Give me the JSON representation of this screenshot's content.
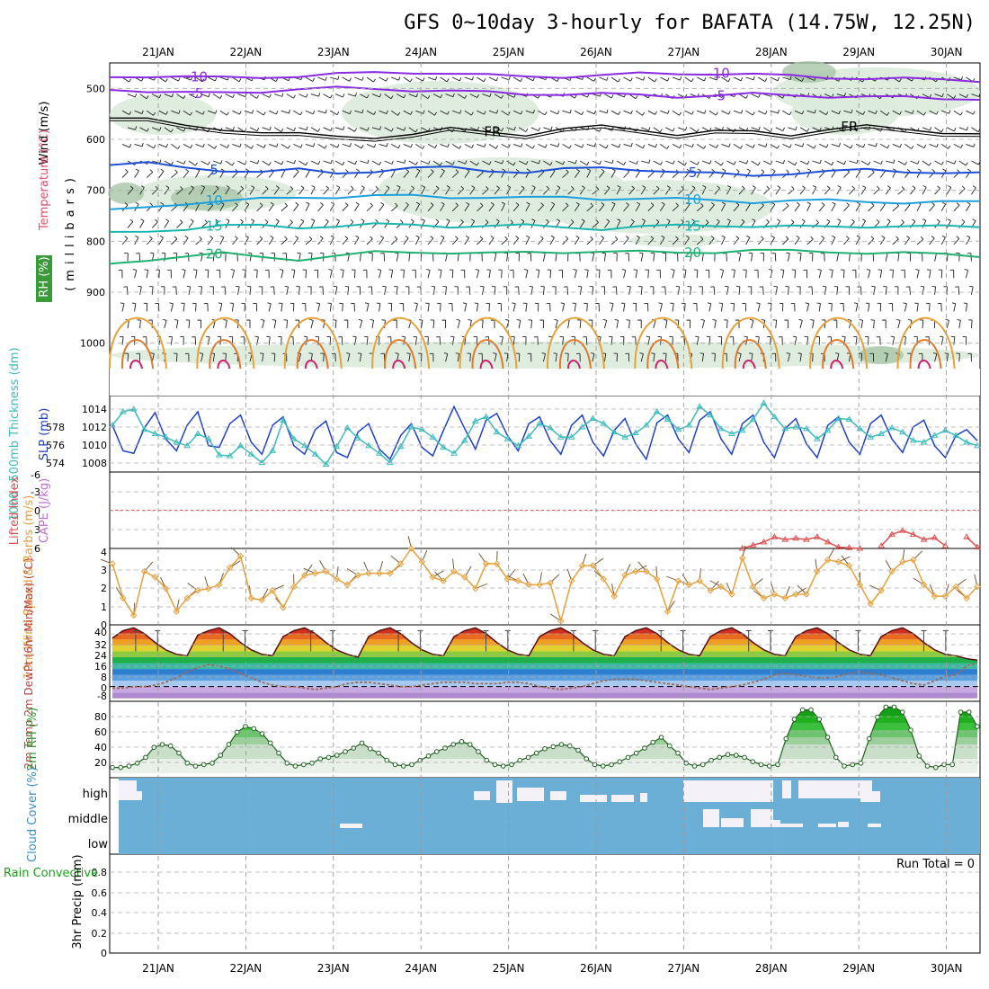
{
  "header": {
    "title": "GFS 0~10day 3-hourly for BAFATA (14.75W, 12.25N)"
  },
  "dates": [
    "21JAN",
    "22JAN",
    "23JAN",
    "24JAN",
    "25JAN",
    "26JAN",
    "27JAN",
    "28JAN",
    "29JAN",
    "30JAN"
  ],
  "colors": {
    "cloud_fill": "#6baed6",
    "rh_fill": "#2fbf2f",
    "temp_fill": "#d7301f",
    "slp_line": "#1f3fcf",
    "thickness_line": "#3cbcbc",
    "wind_line": "#e8a03c",
    "lifted_line": "#e05050",
    "contour_purple": "#8a2be2",
    "contour_blue": "#1f4fd6",
    "contour_lightblue": "#1ea0dc",
    "contour_teal": "#1bb5b0",
    "contour_green": "#20b070",
    "contour_orange": "#e8a23a",
    "rh_shade": "#dcebdc",
    "dewpoint_line": "#9a6a5a"
  },
  "chart_data": [
    {
      "id": "upper_air",
      "type": "heatmap",
      "ylabel": "(millibars)",
      "labels": {
        "wind": "Wind (m/s)",
        "temperature": "Temperature (°C)",
        "rh": "RH (%)"
      },
      "yticks": [
        "500",
        "600",
        "700",
        "800",
        "900",
        "1000"
      ],
      "ylim": [
        450,
        1050
      ],
      "contours": [
        {
          "label": "-10",
          "color": "purple",
          "p": [
            478,
            475,
            477,
            480,
            478,
            475,
            472,
            470,
            468,
            470,
            475,
            477,
            476,
            474,
            472,
            471,
            470,
            473,
            476,
            478,
            480,
            482,
            483,
            484
          ]
        },
        {
          "label": "-5",
          "color": "purple",
          "p": [
            500,
            506,
            510,
            508,
            505,
            502,
            500,
            500,
            503,
            506,
            508,
            510,
            511,
            512,
            513,
            515,
            514,
            512,
            513,
            515,
            517,
            518,
            519,
            520
          ]
        },
        {
          "label": "FR",
          "color": "black",
          "p": [
            555,
            560,
            575,
            580,
            585,
            590,
            595,
            595,
            590,
            580,
            585,
            590,
            580,
            575,
            580,
            590,
            585,
            585,
            590,
            580,
            575,
            580,
            585,
            590
          ]
        },
        {
          "label": "5",
          "color": "blue",
          "p": [
            650,
            648,
            655,
            660,
            665,
            660,
            665,
            662,
            658,
            655,
            660,
            665,
            660,
            655,
            658,
            665,
            668,
            670,
            666,
            664,
            660,
            662,
            665,
            668
          ]
        },
        {
          "label": "10",
          "color": "lightblue",
          "p": [
            740,
            735,
            725,
            720,
            718,
            715,
            712,
            710,
            712,
            714,
            712,
            715,
            715,
            716,
            715,
            718,
            720,
            722,
            720,
            721,
            722,
            723,
            723,
            724
          ]
        },
        {
          "label": "15",
          "color": "teal",
          "p": [
            785,
            780,
            775,
            770,
            770,
            772,
            770,
            768,
            768,
            770,
            770,
            770,
            772,
            775,
            772,
            770,
            768,
            770,
            772,
            772,
            770,
            770,
            772,
            772
          ]
        },
        {
          "label": "20",
          "color": "green",
          "p": [
            845,
            835,
            830,
            825,
            830,
            835,
            830,
            822,
            820,
            822,
            825,
            822,
            820,
            820,
            822,
            822,
            820,
            818,
            820,
            820,
            822,
            824,
            826,
            828
          ]
        }
      ]
    },
    {
      "id": "slp_thickness",
      "type": "line",
      "ylabel_left": "1000~500mb Thickness (dm)",
      "ylabel_right": "SLP (mb)",
      "yticks_left": [
        "574",
        "576",
        "578"
      ],
      "yticks_right": [
        "1008",
        "1010",
        "1012",
        "1014"
      ],
      "ylim": [
        1006.5,
        1015.5
      ],
      "series": [
        {
          "name": "SLP (mb)",
          "values": [
            1012,
            1009,
            1008.7,
            1011.7,
            1013.5,
            1010.4,
            1009,
            1012,
            1013.6,
            1009.6,
            1009.4,
            1012.2,
            1013.2,
            1010,
            1008.6,
            1012,
            1013,
            1009.6,
            1008.6,
            1011.5,
            1012.5,
            1008.8,
            1008.2,
            1011.2,
            1012.2,
            1009.2,
            1008,
            1010.8,
            1012.2,
            1009.4,
            1008.4,
            1011.4,
            1014.2,
            1011.6,
            1009.2,
            1012.6,
            1013.4,
            1010.8,
            1009,
            1012.2,
            1013,
            1010.2,
            1008.6,
            1012,
            1013.2,
            1010,
            1008.4,
            1011.4,
            1012.8,
            1009.8,
            1008,
            1012.3,
            1013.2,
            1010.4,
            1008.8,
            1012.6,
            1013.6,
            1010.4,
            1008.6,
            1012.2,
            1013.2,
            1010,
            1008.2,
            1011.6,
            1012.8,
            1009.8,
            1008.2,
            1012,
            1013,
            1010,
            1008.6,
            1012.2,
            1013.2,
            1010.4,
            1008.8,
            1011.8,
            1012.6,
            1009.6,
            1008.2,
            1010.8,
            1011.5,
            1010.2
          ]
        },
        {
          "name": "Thickness (dm)",
          "values": [
            1012,
            1013.6,
            1013.9,
            1011.5,
            1011,
            1010.6,
            1010,
            1009.6,
            1011,
            1010.4,
            1008.5,
            1008.4,
            1009.6,
            1008.6,
            1007.6,
            1009,
            1012.6,
            1010.4,
            1009.6,
            1008.6,
            1007.4,
            1009.5,
            1011.7,
            1010.5,
            1009.6,
            1008.7,
            1007.6,
            1009.5,
            1011.8,
            1011.5,
            1010.6,
            1009.4,
            1008.7,
            1010.2,
            1012.5,
            1013,
            1011.2,
            1010.4,
            1009.6,
            1010.7,
            1012.2,
            1011.7,
            1010.6,
            1010.6,
            1011.8,
            1012.8,
            1012.2,
            1011.2,
            1010.6,
            1011.1,
            1012,
            1013.6,
            1012.7,
            1011.5,
            1012,
            1014.2,
            1013.2,
            1011.6,
            1011,
            1011.4,
            1012.7,
            1014.6,
            1013,
            1011.6,
            1011.8,
            1011.6,
            1010.4,
            1011.4,
            1012.8,
            1012.7,
            1011.6,
            1010.6,
            1011,
            1011.7,
            1011.2,
            1010.2,
            1010,
            1010.8,
            1011.4,
            1010.8,
            1010,
            1009.6
          ]
        }
      ]
    },
    {
      "id": "lifted_cape",
      "type": "line",
      "ylabel_left": "Lifted Index",
      "ylabel_right": "CAPE (J/kg)",
      "yticks": [
        "-6",
        "-3",
        "0",
        "3",
        "6"
      ],
      "ylim": [
        -6,
        6
      ],
      "series": [
        {
          "name": "Lifted Index",
          "values": [
            null,
            null,
            null,
            null,
            null,
            null,
            null,
            null,
            null,
            null,
            null,
            null,
            null,
            null,
            null,
            null,
            null,
            null,
            null,
            null,
            null,
            null,
            null,
            null,
            null,
            null,
            null,
            null,
            null,
            null,
            null,
            null,
            null,
            null,
            null,
            null,
            null,
            null,
            null,
            null,
            null,
            null,
            null,
            null,
            null,
            null,
            null,
            null,
            null,
            null,
            null,
            null,
            null,
            null,
            null,
            null,
            null,
            null,
            null,
            6,
            5.5,
            5,
            4.2,
            4.6,
            4.4,
            4.6,
            4.2,
            5,
            5.8,
            5.9,
            6,
            null,
            5.6,
            3.8,
            3.2,
            3.8,
            4.6,
            4.3,
            5.6,
            null,
            4.2,
            5.8
          ]
        }
      ]
    },
    {
      "id": "wind10m",
      "type": "line",
      "ylabel": "10m Wind Speed & Barbs (m/s)",
      "yticks": [
        "0",
        "1",
        "2",
        "3",
        "4"
      ],
      "ylim": [
        0,
        4
      ],
      "series": [
        {
          "name": "10m Wind Speed",
          "values": [
            3.2,
            1.4,
            0.5,
            2.8,
            2.5,
            1.9,
            0.7,
            1.4,
            1.8,
            1.9,
            2.1,
            3.0,
            3.6,
            1.4,
            1.3,
            1.8,
            0.9,
            2.0,
            2.6,
            2.7,
            2.8,
            2.4,
            2.1,
            2.6,
            2.7,
            2.7,
            2.7,
            3.2,
            4.0,
            3.3,
            2.5,
            2.3,
            2.8,
            2.5,
            1.9,
            3.2,
            3.2,
            2.4,
            2.3,
            2.1,
            2.1,
            2.2,
            0.2,
            2.3,
            3.1,
            3.1,
            2.4,
            1.5,
            2.6,
            2.8,
            2.8,
            2.4,
            0.7,
            2.3,
            2.1,
            2.3,
            1.8,
            2.0,
            1.6,
            3.5,
            2.0,
            1.4,
            1.6,
            1.4,
            1.6,
            1.6,
            2.8,
            3.4,
            3.3,
            3.1,
            2.1,
            1.1,
            1.8,
            2.8,
            3.3,
            3.4,
            2.1,
            1.5,
            1.5,
            2.0,
            1.4,
            2.0
          ]
        }
      ]
    },
    {
      "id": "temp2m",
      "type": "area",
      "ylabel": "2m Temp 2m DewPt (6hr Min/Max) (°C)",
      "yticks": [
        "-8",
        "0",
        "8",
        "16",
        "24",
        "32",
        "40"
      ],
      "ylim": [
        -10,
        42
      ],
      "series": [
        {
          "name": "2m Temp",
          "values": [
            33,
            38,
            40,
            36,
            30,
            25,
            22,
            21,
            35,
            38,
            40,
            36,
            30,
            25,
            22,
            21,
            34,
            38,
            40,
            36,
            30,
            25,
            22,
            20,
            34,
            38,
            40,
            36,
            30,
            25,
            22,
            21,
            34,
            38,
            40,
            36,
            30,
            25,
            22,
            21,
            34,
            38,
            40,
            36,
            30,
            25,
            22,
            21,
            34,
            38,
            40,
            36,
            30,
            25,
            22,
            21,
            34,
            38,
            40,
            36,
            30,
            25,
            22,
            21,
            34,
            38,
            40,
            36,
            30,
            25,
            22,
            21,
            34,
            38,
            40,
            36,
            30,
            25,
            22,
            21,
            19,
            18
          ]
        },
        {
          "name": "2m DewPt",
          "values": [
            -1,
            -1,
            0,
            0,
            1,
            3,
            6,
            10,
            13,
            15,
            14,
            12,
            9,
            6,
            3,
            1,
            0,
            0,
            -1,
            -2,
            -1,
            0,
            2,
            3,
            3,
            2,
            1,
            0,
            0,
            1,
            2,
            3,
            3,
            3,
            2,
            2,
            2,
            3,
            3,
            2,
            0,
            -1,
            -2,
            -1,
            0,
            2,
            4,
            5,
            5,
            5,
            4,
            3,
            2,
            1,
            0,
            -1,
            -2,
            -1,
            0,
            1,
            3,
            5,
            8,
            9,
            8,
            7,
            6,
            6,
            7,
            9,
            10,
            9,
            8,
            6,
            4,
            2,
            1,
            4,
            7,
            8,
            14,
            16
          ]
        }
      ]
    },
    {
      "id": "rh2m",
      "type": "area",
      "ylabel": "2m RH (%)",
      "yticks": [
        "20",
        "40",
        "60",
        "80"
      ],
      "ylim": [
        0,
        100
      ],
      "series": [
        {
          "name": "2m RH",
          "values": [
            8,
            8,
            10,
            14,
            22,
            36,
            40,
            38,
            28,
            14,
            10,
            12,
            14,
            25,
            40,
            57,
            65,
            62,
            55,
            42,
            28,
            14,
            10,
            12,
            14,
            20,
            22,
            25,
            30,
            35,
            42,
            34,
            28,
            18,
            12,
            10,
            12,
            18,
            24,
            30,
            35,
            40,
            44,
            40,
            30,
            18,
            12,
            10,
            12,
            18,
            22,
            28,
            34,
            37,
            40,
            38,
            32,
            20,
            12,
            10,
            12,
            16,
            22,
            28,
            35,
            43,
            50,
            38,
            28,
            14,
            10,
            12,
            18,
            22,
            26,
            25,
            22,
            16,
            12,
            10,
            12,
            48,
            75,
            88,
            88,
            75,
            50,
            22,
            10,
            12,
            14,
            48,
            78,
            92,
            92,
            85,
            60,
            24,
            10,
            8,
            12,
            12,
            85,
            85,
            65
          ]
        }
      ]
    },
    {
      "id": "cloud_cover",
      "type": "heatmap",
      "ylabel": "Cloud Cover (%)",
      "yticks": [
        "high",
        "middle",
        "low"
      ]
    },
    {
      "id": "precip",
      "type": "bar",
      "ylabel_left": "Total / Rain Convective",
      "ylabel_right": "3hr Precip (mm)",
      "yticks": [
        "0",
        "0.2",
        "0.4",
        "0.6",
        "0.8"
      ],
      "ylim": [
        0,
        1
      ],
      "run_total": "Run Total = 0",
      "values": []
    }
  ]
}
